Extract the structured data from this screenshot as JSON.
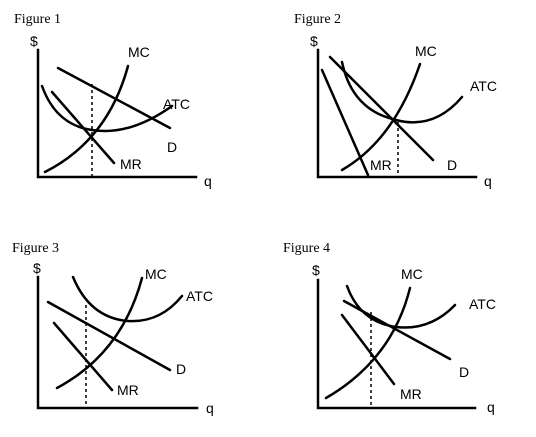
{
  "figures": [
    {
      "title": "Figure 1",
      "y_axis_label": "$",
      "x_axis_label": "q",
      "curves": {
        "mc": "MC",
        "atc": "ATC",
        "d": "D",
        "mr": "MR"
      }
    },
    {
      "title": "Figure 2",
      "y_axis_label": "$",
      "x_axis_label": "q",
      "curves": {
        "mc": "MC",
        "atc": "ATC",
        "d": "D",
        "mr": "MR"
      }
    },
    {
      "title": "Figure 3",
      "y_axis_label": "$",
      "x_axis_label": "q",
      "curves": {
        "mc": "MC",
        "atc": "ATC",
        "d": "D",
        "mr": "MR"
      }
    },
    {
      "title": "Figure 4",
      "y_axis_label": "$",
      "x_axis_label": "q",
      "curves": {
        "mc": "MC",
        "atc": "ATC",
        "d": "D",
        "mr": "MR"
      }
    }
  ]
}
